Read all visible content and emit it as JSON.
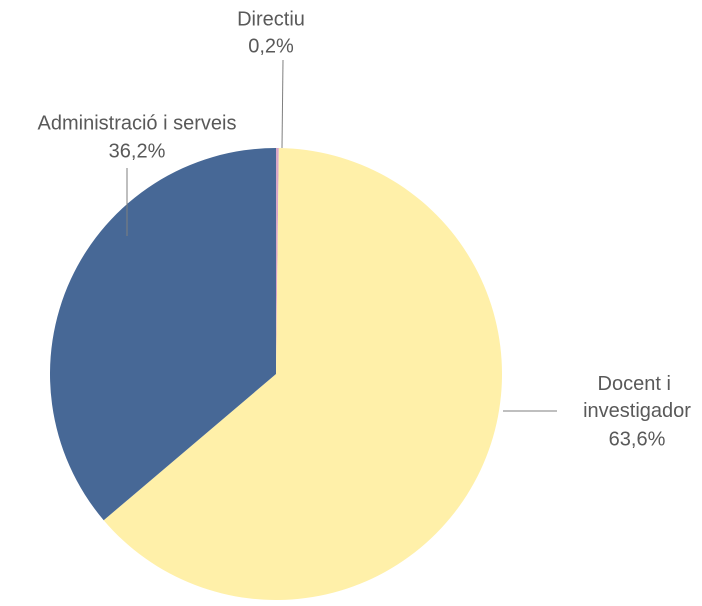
{
  "chart_data": {
    "type": "pie",
    "categories": [
      "Directiu",
      "Docent i investigador",
      "Administració i serveis"
    ],
    "values": [
      0.2,
      63.6,
      36.2
    ],
    "value_labels": [
      "0,2%",
      "63,6%",
      "36,2%"
    ],
    "colors": [
      "#d8a7c8",
      "#fff0a9",
      "#476896"
    ]
  }
}
